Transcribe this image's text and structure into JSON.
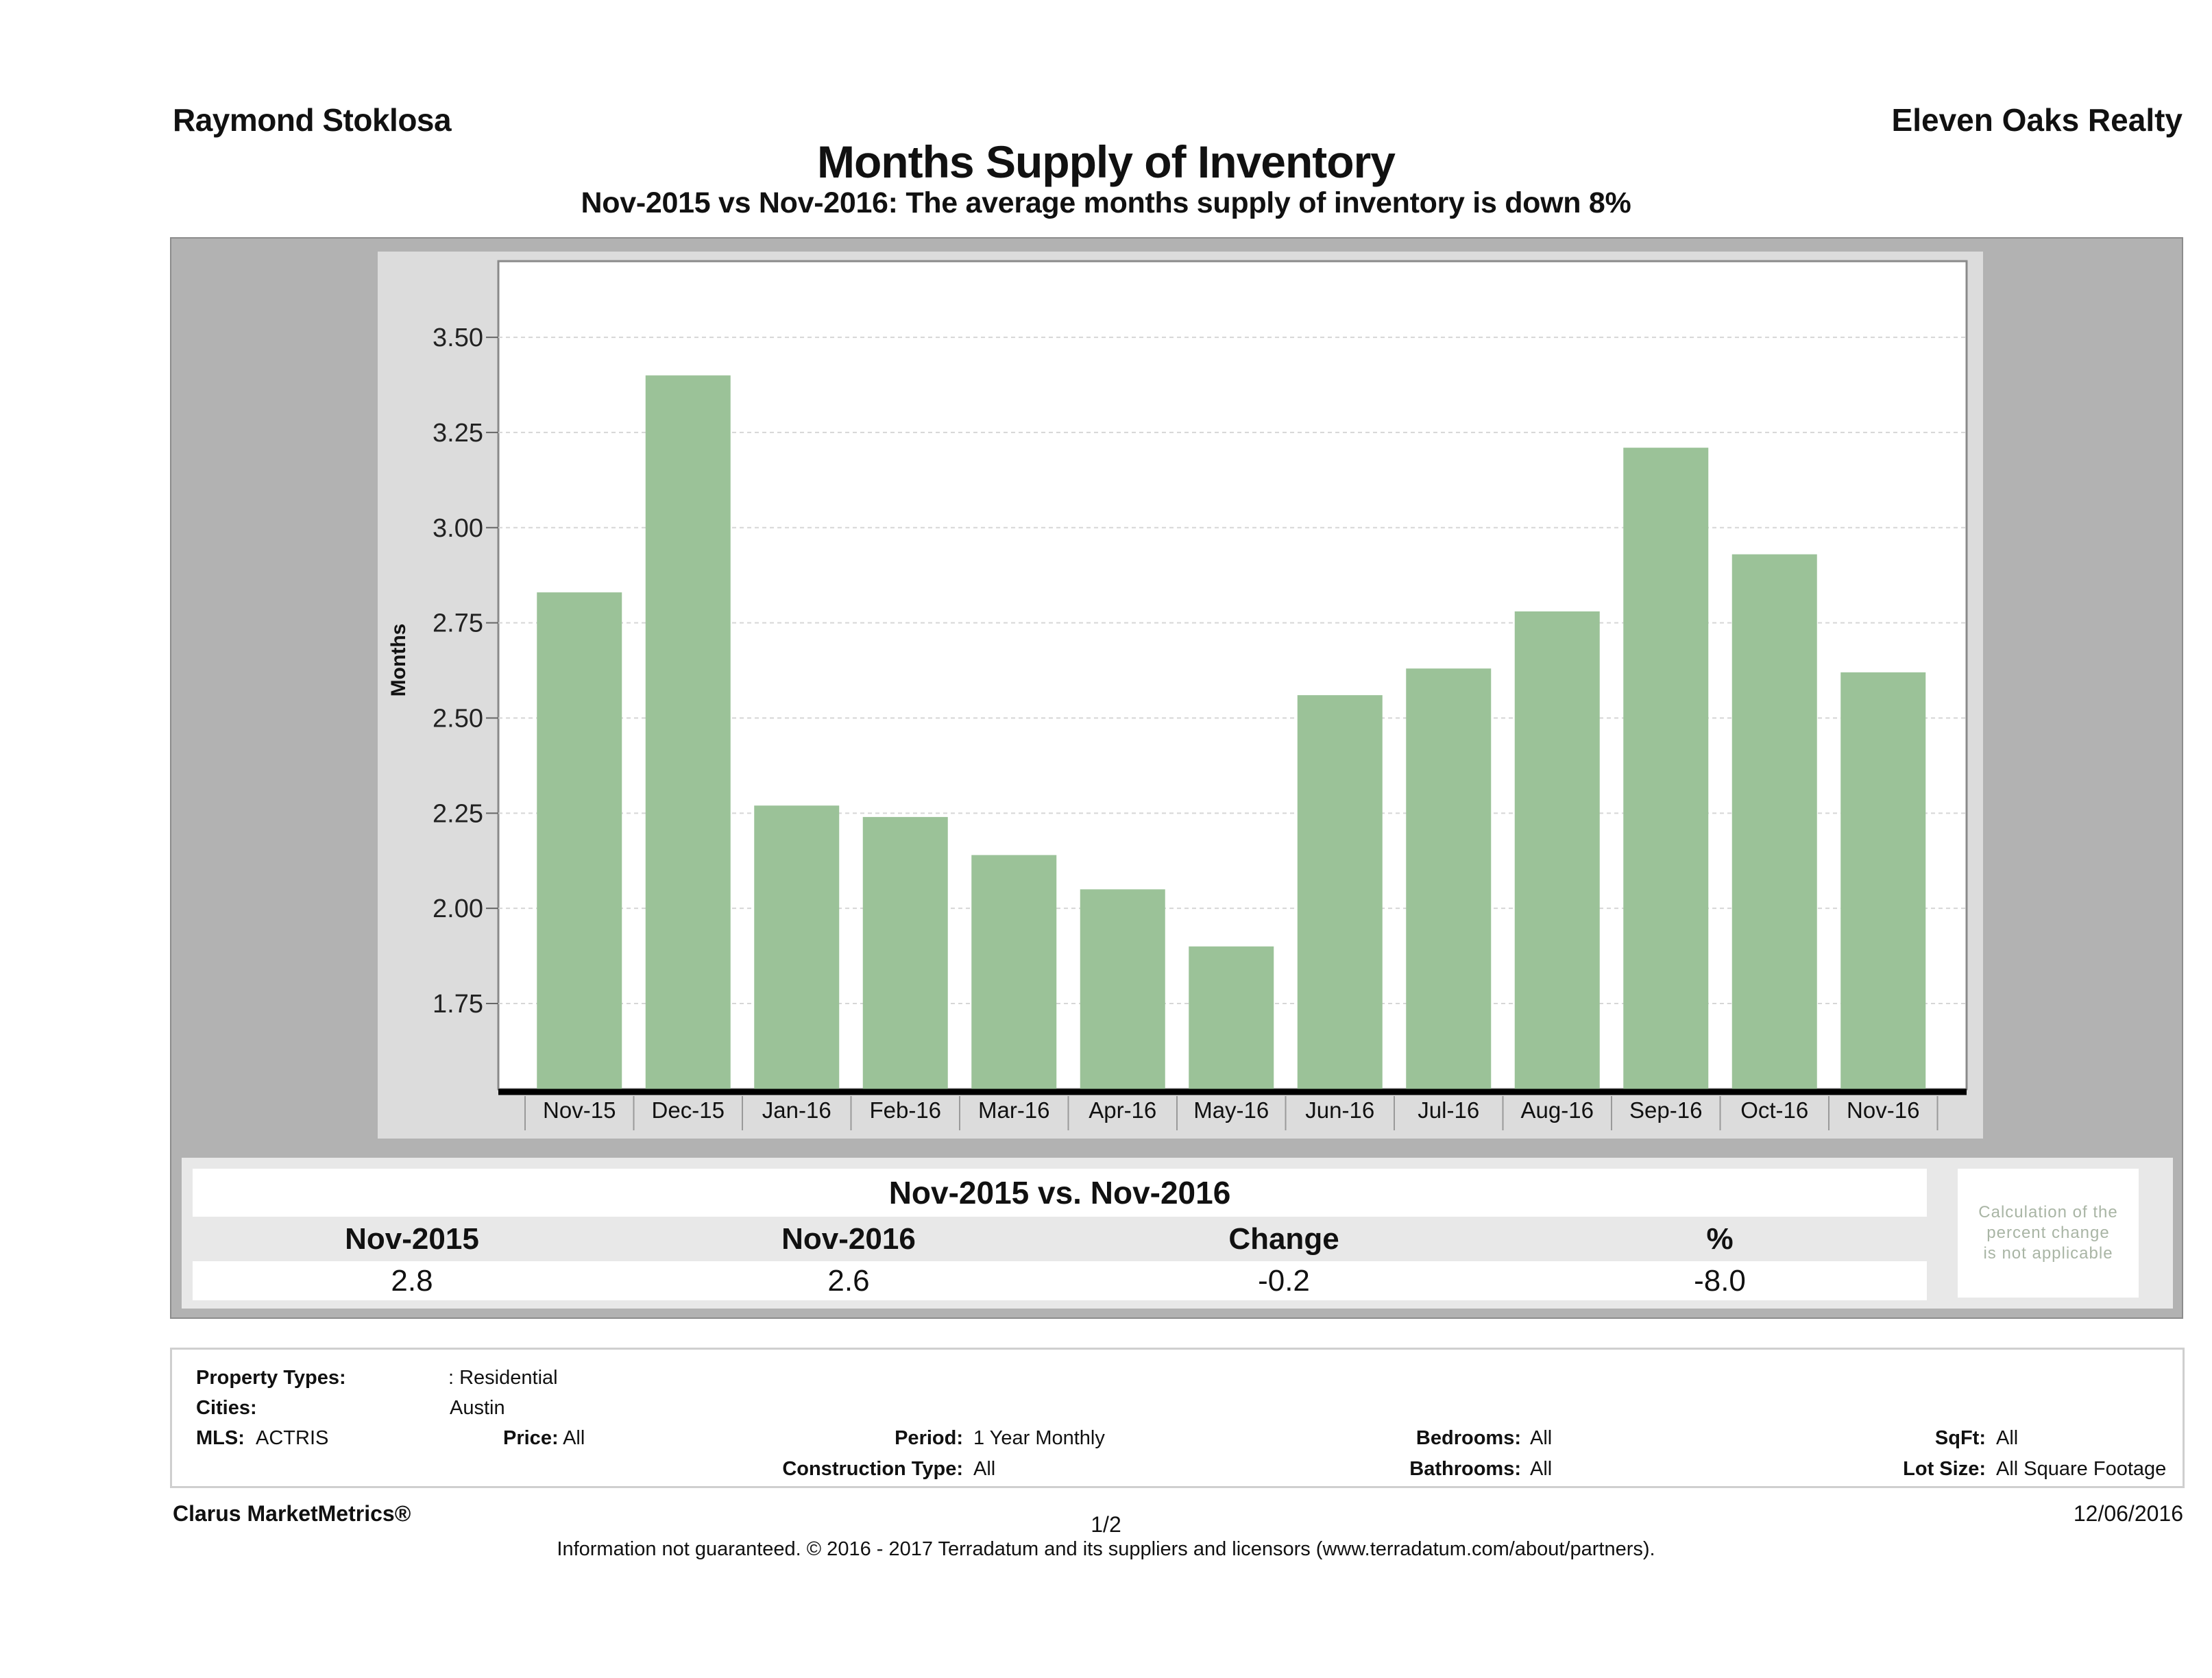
{
  "header": {
    "agent_name": "Raymond Stoklosa",
    "brokerage": "Eleven Oaks Realty",
    "title": "Months Supply of Inventory",
    "subtitle": "Nov-2015 vs Nov-2016: The average months supply of inventory is down 8%"
  },
  "colors": {
    "bar": "#9bc298",
    "frame": "#b2b2b2",
    "panel": "#dcdcdc",
    "note_text": "#a9b5a5"
  },
  "chart_data": {
    "type": "bar",
    "title": "Months Supply of Inventory",
    "xlabel": "",
    "ylabel": "Months",
    "categories": [
      "Nov-15",
      "Dec-15",
      "Jan-16",
      "Feb-16",
      "Mar-16",
      "Apr-16",
      "May-16",
      "Jun-16",
      "Jul-16",
      "Aug-16",
      "Sep-16",
      "Oct-16",
      "Nov-16"
    ],
    "values": [
      2.83,
      3.4,
      2.27,
      2.24,
      2.14,
      2.05,
      1.9,
      2.56,
      2.63,
      2.78,
      3.21,
      2.93,
      2.62
    ],
    "ylim": [
      1.525,
      3.7
    ],
    "yticks": [
      "1.75",
      "2.00",
      "2.25",
      "2.50",
      "2.75",
      "3.00",
      "3.25",
      "3.50"
    ],
    "grid": true,
    "legend": "none"
  },
  "summary": {
    "title": "Nov-2015 vs. Nov-2016",
    "headers": [
      "Nov-2015",
      "Nov-2016",
      "Change",
      "%"
    ],
    "values": [
      "2.8",
      "2.6",
      "-0.2",
      "-8.0"
    ],
    "note": [
      "Calculation of the",
      "percent change",
      "is not applicable"
    ]
  },
  "filters": {
    "property_types_label": "Property Types:",
    "property_types_value": ": Residential",
    "cities_label": "Cities:",
    "cities_value": "Austin",
    "mls_label": "MLS:",
    "mls_value": "ACTRIS",
    "price_label": "Price:",
    "price_value": "All",
    "period_label": "Period:",
    "period_value": "1 Year Monthly",
    "construction_label": "Construction Type:",
    "construction_value": "All",
    "bedrooms_label": "Bedrooms:",
    "bedrooms_value": "All",
    "bathrooms_label": "Bathrooms:",
    "bathrooms_value": "All",
    "sqft_label": "SqFt:",
    "sqft_value": "All",
    "lot_label": "Lot Size:",
    "lot_value": "All Square Footage"
  },
  "footer": {
    "brand": "Clarus MarketMetrics®",
    "page": "1/2",
    "date": "12/06/2016",
    "disclaimer": "Information not guaranteed. © 2016 - 2017 Terradatum and its suppliers and licensors (www.terradatum.com/about/partners)."
  }
}
